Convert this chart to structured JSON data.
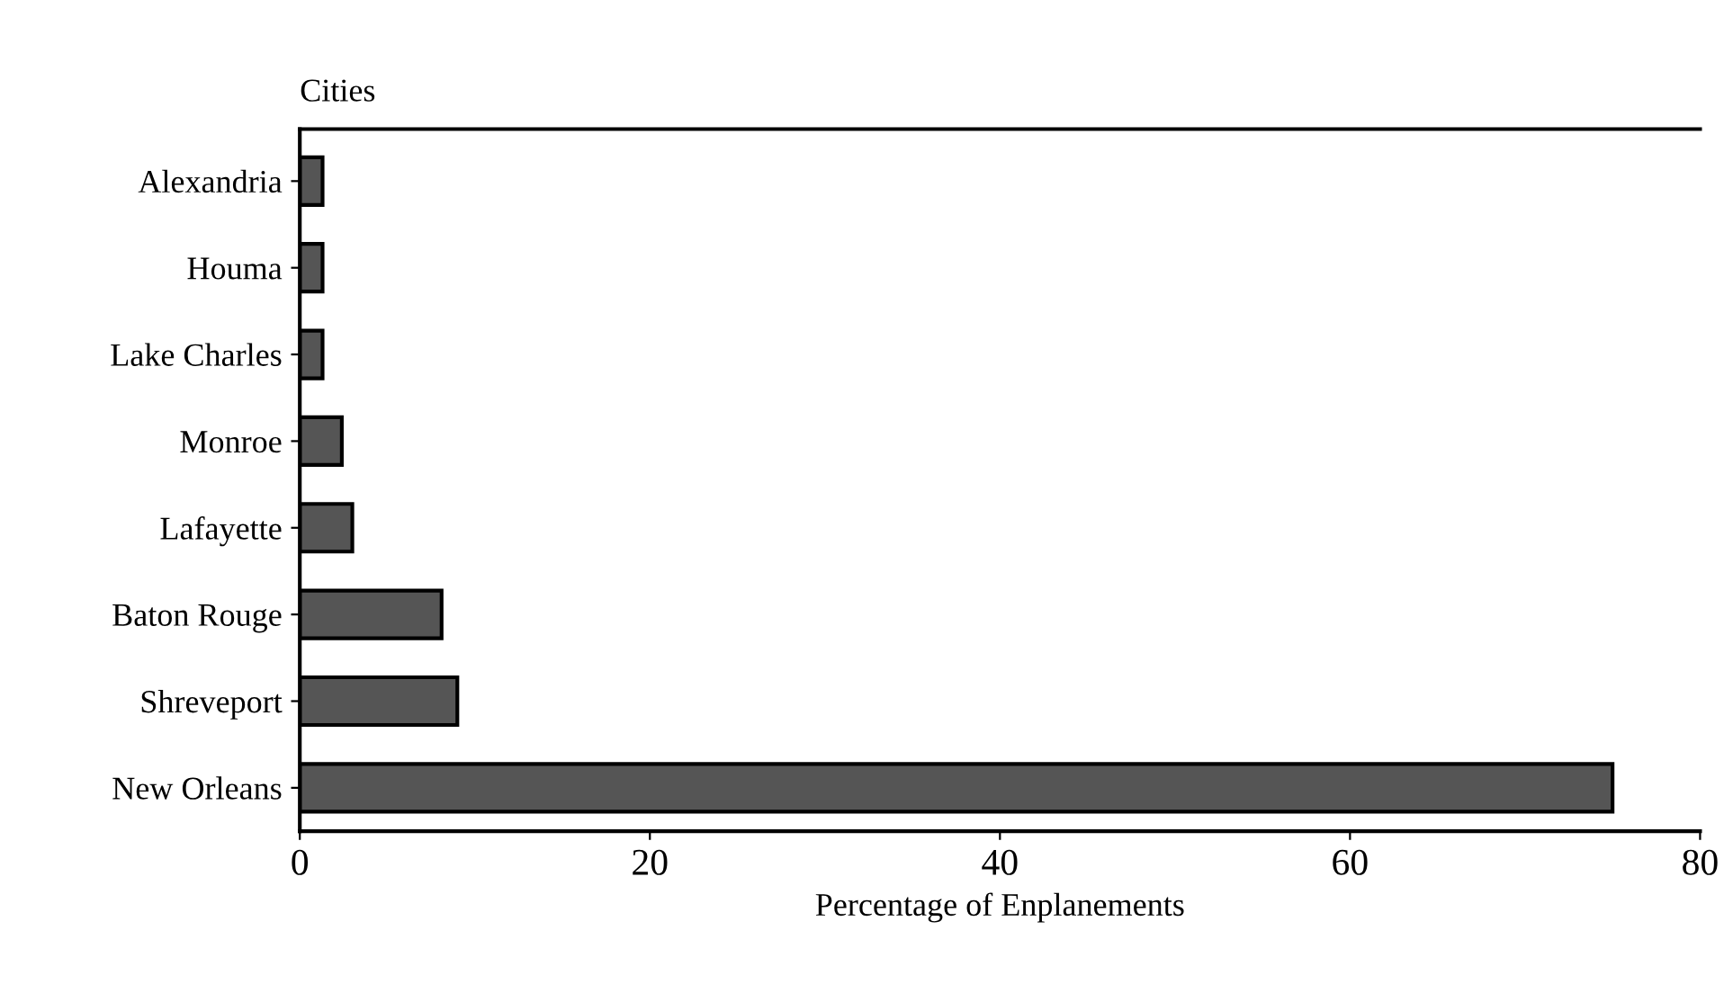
{
  "chart_data": {
    "type": "bar",
    "orientation": "horizontal",
    "ylabel": "Cities",
    "xlabel": "Percentage of Enplanements",
    "categories": [
      "Alexandria",
      "Houma",
      "Lake Charles",
      "Monroe",
      "Lafayette",
      "Baton Rouge",
      "Shreveport",
      "New Orleans"
    ],
    "values": [
      1.3,
      1.3,
      1.3,
      2.4,
      3.0,
      8.1,
      9.0,
      75
    ],
    "color": "#555555",
    "xlim": [
      0,
      80
    ],
    "xticks": [
      0,
      20,
      40,
      60,
      80
    ],
    "grid": false,
    "legend": false
  }
}
